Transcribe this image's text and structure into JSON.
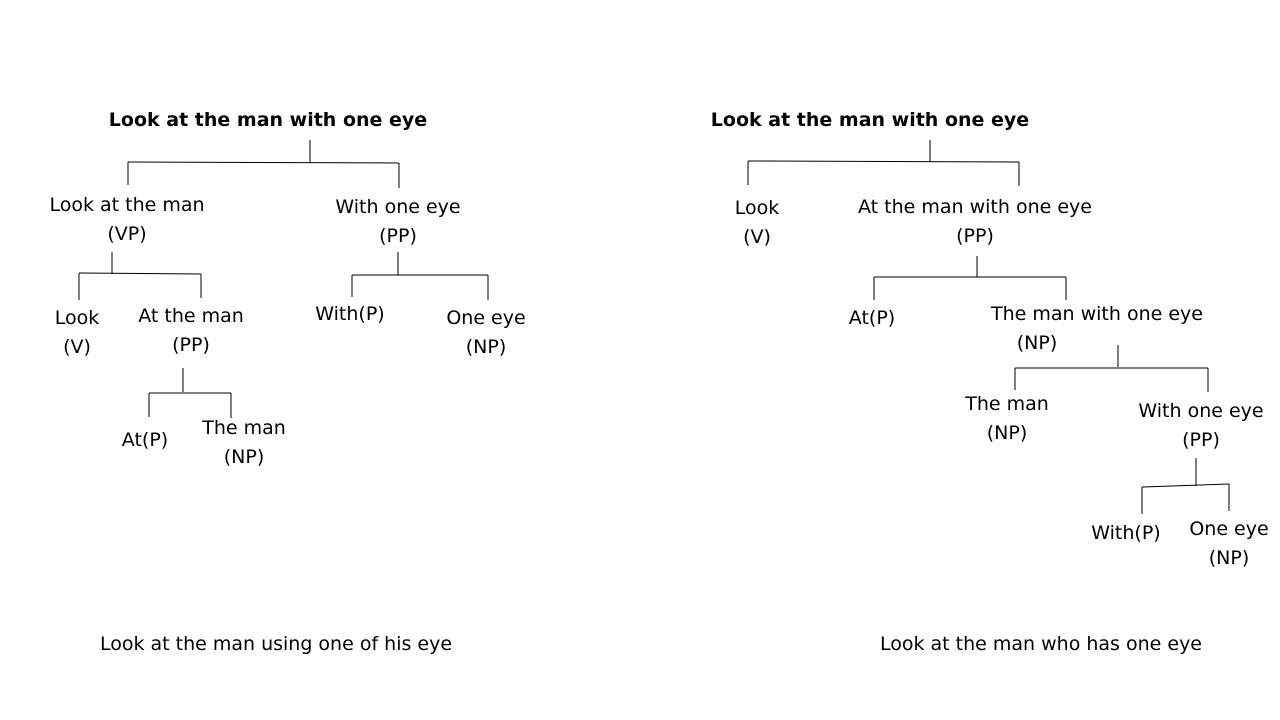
{
  "left_tree": {
    "root": "Look at the man with one eye",
    "vp_phrase": "Look at the man",
    "vp_tag": "(VP)",
    "pp_phrase": "With one eye",
    "pp_tag": "(PP)",
    "look_word": "Look",
    "look_tag": "(V)",
    "at_the_man": "At the man",
    "at_the_man_tag": "(PP)",
    "with_p": "With(P)",
    "one_eye": "One eye",
    "one_eye_tag": "(NP)",
    "at_p": "At(P)",
    "the_man": "The man",
    "the_man_tag": "(NP)",
    "caption": "Look at the man using one of his eye"
  },
  "right_tree": {
    "root": "Look at the man with one eye",
    "look_word": "Look",
    "look_tag": "(V)",
    "at_phrase": "At the man with one eye",
    "at_phrase_tag": "(PP)",
    "at_p": "At(P)",
    "np_phrase": "The man with one eye",
    "np_phrase_tag": "(NP)",
    "the_man": "The man",
    "the_man_tag": "(NP)",
    "with_one_eye": "With one eye",
    "with_one_eye_tag": "(PP)",
    "with_p": "With(P)",
    "one_eye": "One eye",
    "one_eye_tag": "(NP)",
    "caption": "Look at the man who has one eye"
  }
}
